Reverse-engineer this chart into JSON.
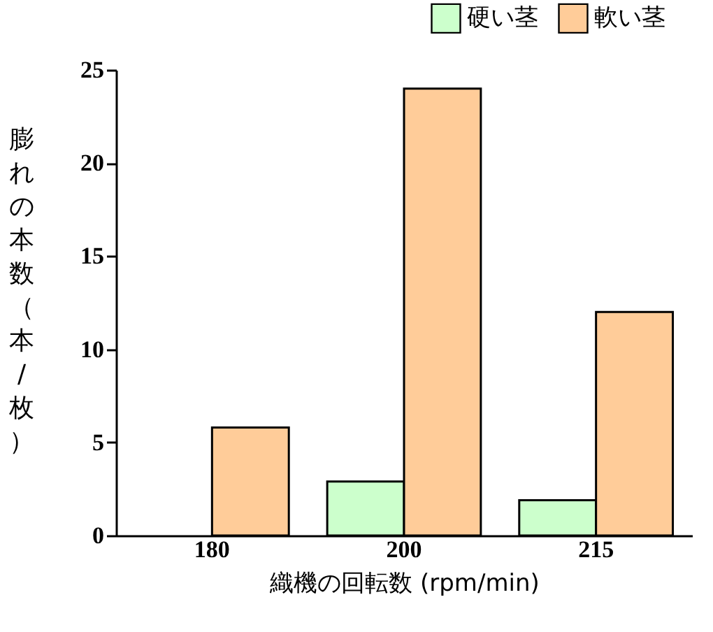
{
  "chart_data": {
    "type": "bar",
    "xlabel": "織機の回転数 (rpm/min)",
    "ylabel": "膨れの本数（本/枚）",
    "categories": [
      "180",
      "200",
      "215"
    ],
    "series": [
      {
        "name": "硬い茎",
        "color": "#ccffcc",
        "values": [
          null,
          2.9,
          1.9
        ]
      },
      {
        "name": "軟い茎",
        "color": "#ffcc99",
        "values": [
          5.8,
          24,
          12
        ]
      }
    ],
    "ylim": [
      0,
      25
    ],
    "yticks": [
      0,
      5,
      10,
      15,
      20,
      25
    ],
    "grid": false,
    "legend": "top right"
  }
}
